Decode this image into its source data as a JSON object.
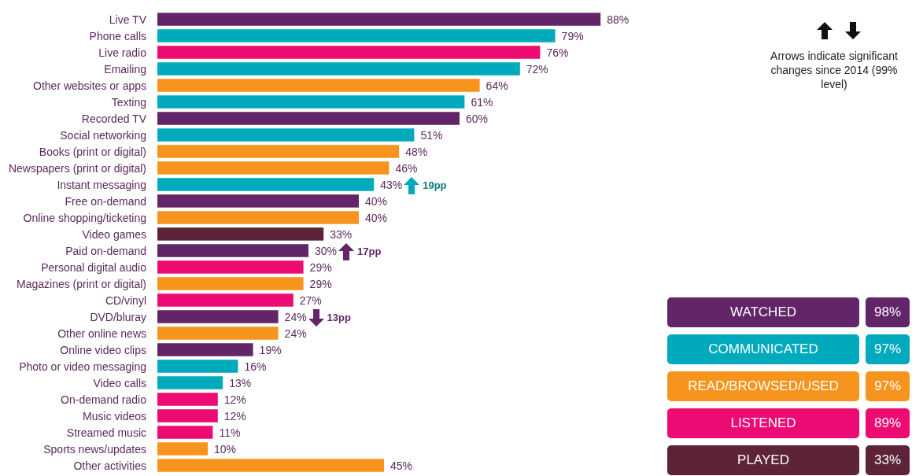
{
  "chart_data": [
    {
      "type": "bar",
      "orientation": "horizontal",
      "categories": [
        "Live TV",
        "Phone calls",
        "Live radio",
        "Emailing",
        "Other websites or apps",
        "Texting",
        "Recorded TV",
        "Social networking",
        "Books (print or digital)",
        "Newspapers (print or digital)",
        "Instant messaging",
        "Free on-demand",
        "Online shopping/ticketing",
        "Video games",
        "Paid on-demand",
        "Personal digital audio",
        "Magazines (print or digital)",
        "CD/vinyl",
        "DVD/bluray",
        "Other online news",
        "Online video clips",
        "Photo or video messaging",
        "Video calls",
        "On-demand radio",
        "Music videos",
        "Streamed music",
        "Sports news/updates",
        "Other activities"
      ],
      "values": [
        88,
        79,
        76,
        72,
        64,
        61,
        60,
        51,
        48,
        46,
        43,
        40,
        40,
        33,
        30,
        29,
        29,
        27,
        24,
        24,
        19,
        16,
        13,
        12,
        12,
        11,
        10,
        45
      ],
      "value_labels": [
        "88%",
        "79%",
        "76%",
        "72%",
        "64%",
        "61%",
        "60%",
        "51%",
        "48%",
        "46%",
        "43%",
        "40%",
        "40%",
        "33%",
        "30%",
        "29%",
        "29%",
        "27%",
        "24%",
        "24%",
        "19%",
        "16%",
        "13%",
        "12%",
        "12%",
        "11%",
        "10%",
        "45%"
      ],
      "colors": [
        "#622567",
        "#00aabd",
        "#ec0b73",
        "#00aabd",
        "#f7941d",
        "#00aabd",
        "#622567",
        "#00aabd",
        "#f7941d",
        "#f7941d",
        "#00aabd",
        "#622567",
        "#f7941d",
        "#5c2339",
        "#622567",
        "#ec0b73",
        "#f7941d",
        "#ec0b73",
        "#622567",
        "#f7941d",
        "#622567",
        "#00aabd",
        "#00aabd",
        "#ec0b73",
        "#ec0b73",
        "#ec0b73",
        "#f7941d",
        "#f7941d"
      ],
      "annotations": [
        "19pp",
        "17pp",
        "13pp",
        "Arrows indicate significant changes since 2014 (99% level)"
      ]
    },
    {
      "type": "other",
      "categories": [
        "WATCHED",
        "COMMUNICATED",
        "READ/BROWSED/USED",
        "LISTENED",
        "PLAYED"
      ],
      "values": [
        98,
        97,
        97,
        89,
        33
      ],
      "value_labels": [
        "98%",
        "97%",
        "97%",
        "89%",
        "33%"
      ],
      "colors": [
        "#622567",
        "#00aabd",
        "#f7941d",
        "#ec0b73",
        "#5c2339"
      ]
    }
  ]
}
